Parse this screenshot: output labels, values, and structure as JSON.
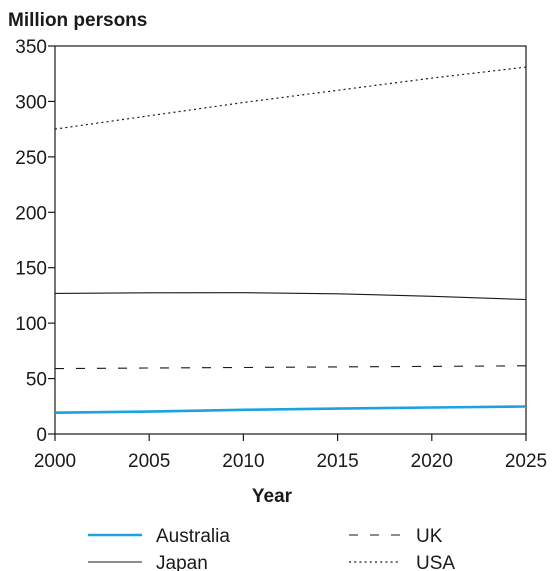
{
  "chart_data": {
    "type": "line",
    "title": "",
    "ylabel": "Million persons",
    "xlabel": "Year",
    "xlim": [
      2000,
      2025
    ],
    "ylim": [
      0,
      350
    ],
    "x_ticks": [
      2000,
      2005,
      2010,
      2015,
      2020,
      2025
    ],
    "y_ticks": [
      0,
      50,
      100,
      150,
      200,
      250,
      300,
      350
    ],
    "grid": false,
    "legend_placement": "bottom",
    "series": [
      {
        "name": "Australia",
        "color": "#1aa3e0",
        "style": "solid-thick",
        "x": [
          2000,
          2005,
          2010,
          2015,
          2020,
          2025
        ],
        "values": [
          19.2,
          20.2,
          21.8,
          22.9,
          23.9,
          24.8
        ]
      },
      {
        "name": "Japan",
        "color": "#1a1a1a",
        "style": "solid",
        "x": [
          2000,
          2005,
          2010,
          2015,
          2020,
          2025
        ],
        "values": [
          126.8,
          127.4,
          127.5,
          126.5,
          124.2,
          121.3
        ]
      },
      {
        "name": "UK",
        "color": "#1a1a1a",
        "style": "dashed",
        "x": [
          2000,
          2005,
          2010,
          2015,
          2020,
          2025
        ],
        "values": [
          59,
          59.5,
          60,
          60.5,
          61,
          61.5
        ]
      },
      {
        "name": "USA",
        "color": "#1a1a1a",
        "style": "dotted",
        "x": [
          2000,
          2005,
          2010,
          2015,
          2020,
          2025
        ],
        "values": [
          275,
          287,
          299,
          310,
          321,
          331
        ]
      }
    ]
  }
}
